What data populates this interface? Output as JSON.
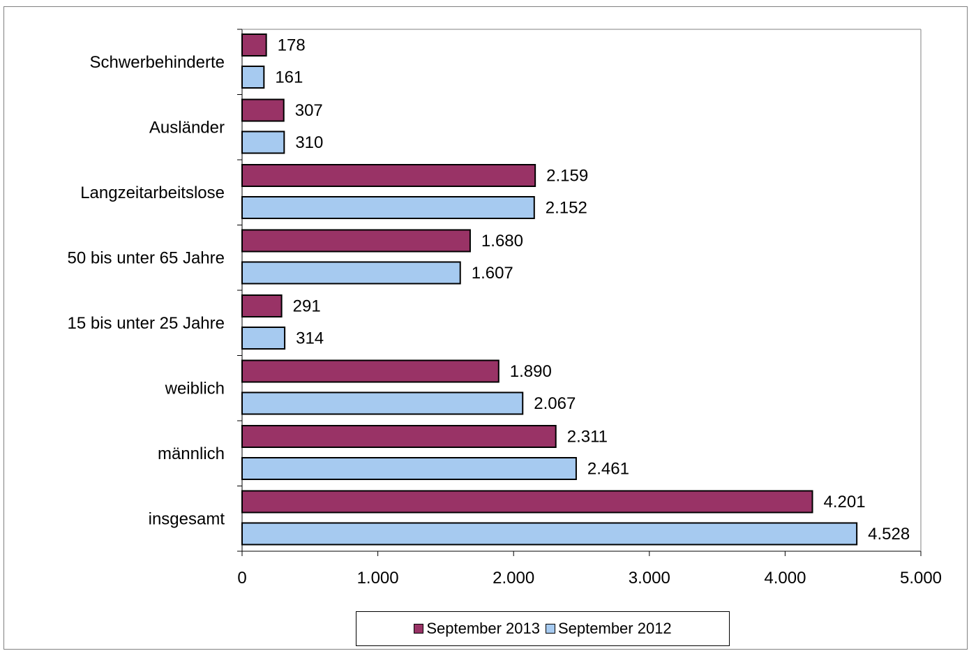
{
  "chart_data": {
    "type": "bar",
    "orientation": "horizontal",
    "title": "",
    "xlabel": "",
    "ylabel": "",
    "categories": [
      "Schwerbehinderte",
      "Ausländer",
      "Langzeitarbeitslose",
      "50 bis unter 65 Jahre",
      "15 bis unter 25 Jahre",
      "weiblich",
      "männlich",
      "insgesamt"
    ],
    "series": [
      {
        "name": "September 2013",
        "color": "#993366",
        "values": [
          178,
          307,
          2159,
          1680,
          291,
          1890,
          2311,
          4201
        ],
        "labels": [
          "178",
          "307",
          "2.159",
          "1.680",
          "291",
          "1.890",
          "2.311",
          "4.201"
        ]
      },
      {
        "name": "September 2012",
        "color": "#A6CAF0",
        "values": [
          161,
          310,
          2152,
          1607,
          314,
          2067,
          2461,
          4528
        ],
        "labels": [
          "161",
          "310",
          "2.152",
          "1.607",
          "314",
          "2.067",
          "2.461",
          "4.528"
        ]
      }
    ],
    "xlim": [
      0,
      5000
    ],
    "xticks": [
      0,
      1000,
      2000,
      3000,
      4000,
      5000
    ],
    "xtick_labels": [
      "0",
      "1.000",
      "2.000",
      "3.000",
      "4.000",
      "5.000"
    ],
    "grid": false,
    "legend_position": "bottom"
  }
}
